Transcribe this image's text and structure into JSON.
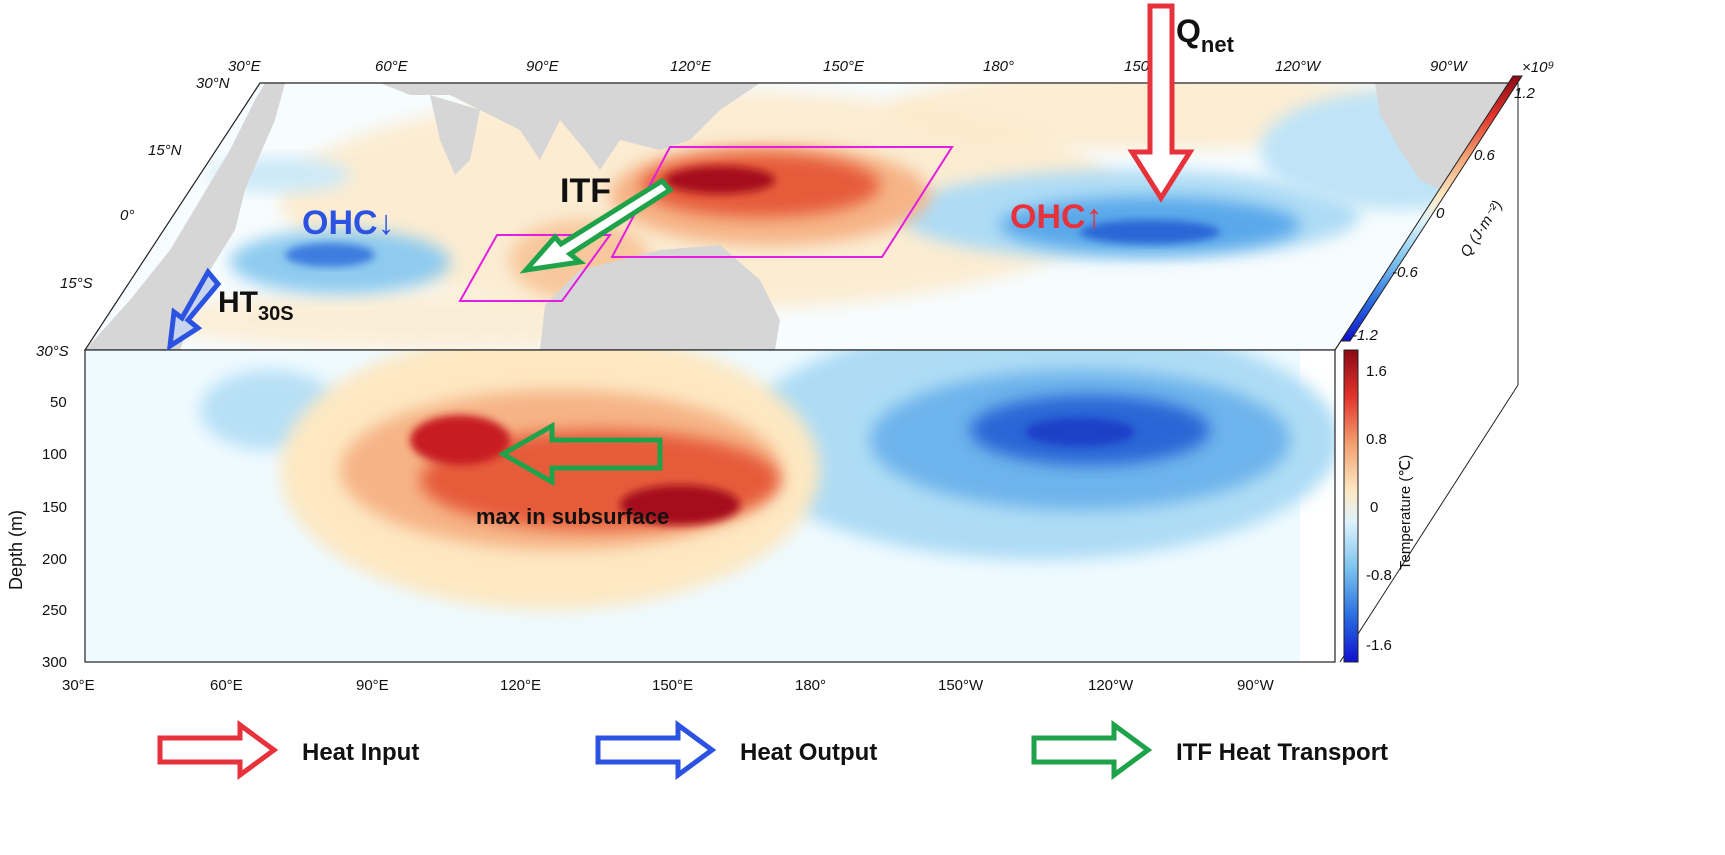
{
  "map": {
    "lon_labels": [
      "30°E",
      "60°E",
      "90°E",
      "120°E",
      "150°E",
      "180°",
      "150°W",
      "120°W",
      "90°W"
    ],
    "lat_labels": [
      "30°N",
      "15°N",
      "0°",
      "15°S",
      "30°S"
    ],
    "colorbar": {
      "exponent": "×10⁹",
      "ticks": [
        "1.2",
        "0.6",
        "0",
        "-0.6",
        "-1.2"
      ],
      "label": "Q (J·m⁻²)"
    }
  },
  "section": {
    "xticks": [
      "30°E",
      "60°E",
      "90°E",
      "120°E",
      "150°E",
      "180°",
      "150°W",
      "120°W",
      "90°W"
    ],
    "yticks": [
      "50",
      "100",
      "150",
      "200",
      "250",
      "300"
    ],
    "ylabel": "Depth (m)",
    "colorbar": {
      "ticks": [
        "1.6",
        "0.8",
        "0",
        "-0.8",
        "-1.6"
      ],
      "label": "Temperature (℃)"
    }
  },
  "annotations": {
    "ohc_down": "OHC↓",
    "ohc_up": "OHC↑",
    "itf": "ITF",
    "ht_main": "HT",
    "ht_sub": "30S",
    "qnet_main": "Q",
    "qnet_sub": "net",
    "max_subsurface": "max in subsurface"
  },
  "legend": [
    {
      "label": "Heat Input",
      "color": "#e8323b"
    },
    {
      "label": "Heat Output",
      "color": "#2b52e0"
    },
    {
      "label": "ITF Heat Transport",
      "color": "#1fa34a"
    }
  ]
}
